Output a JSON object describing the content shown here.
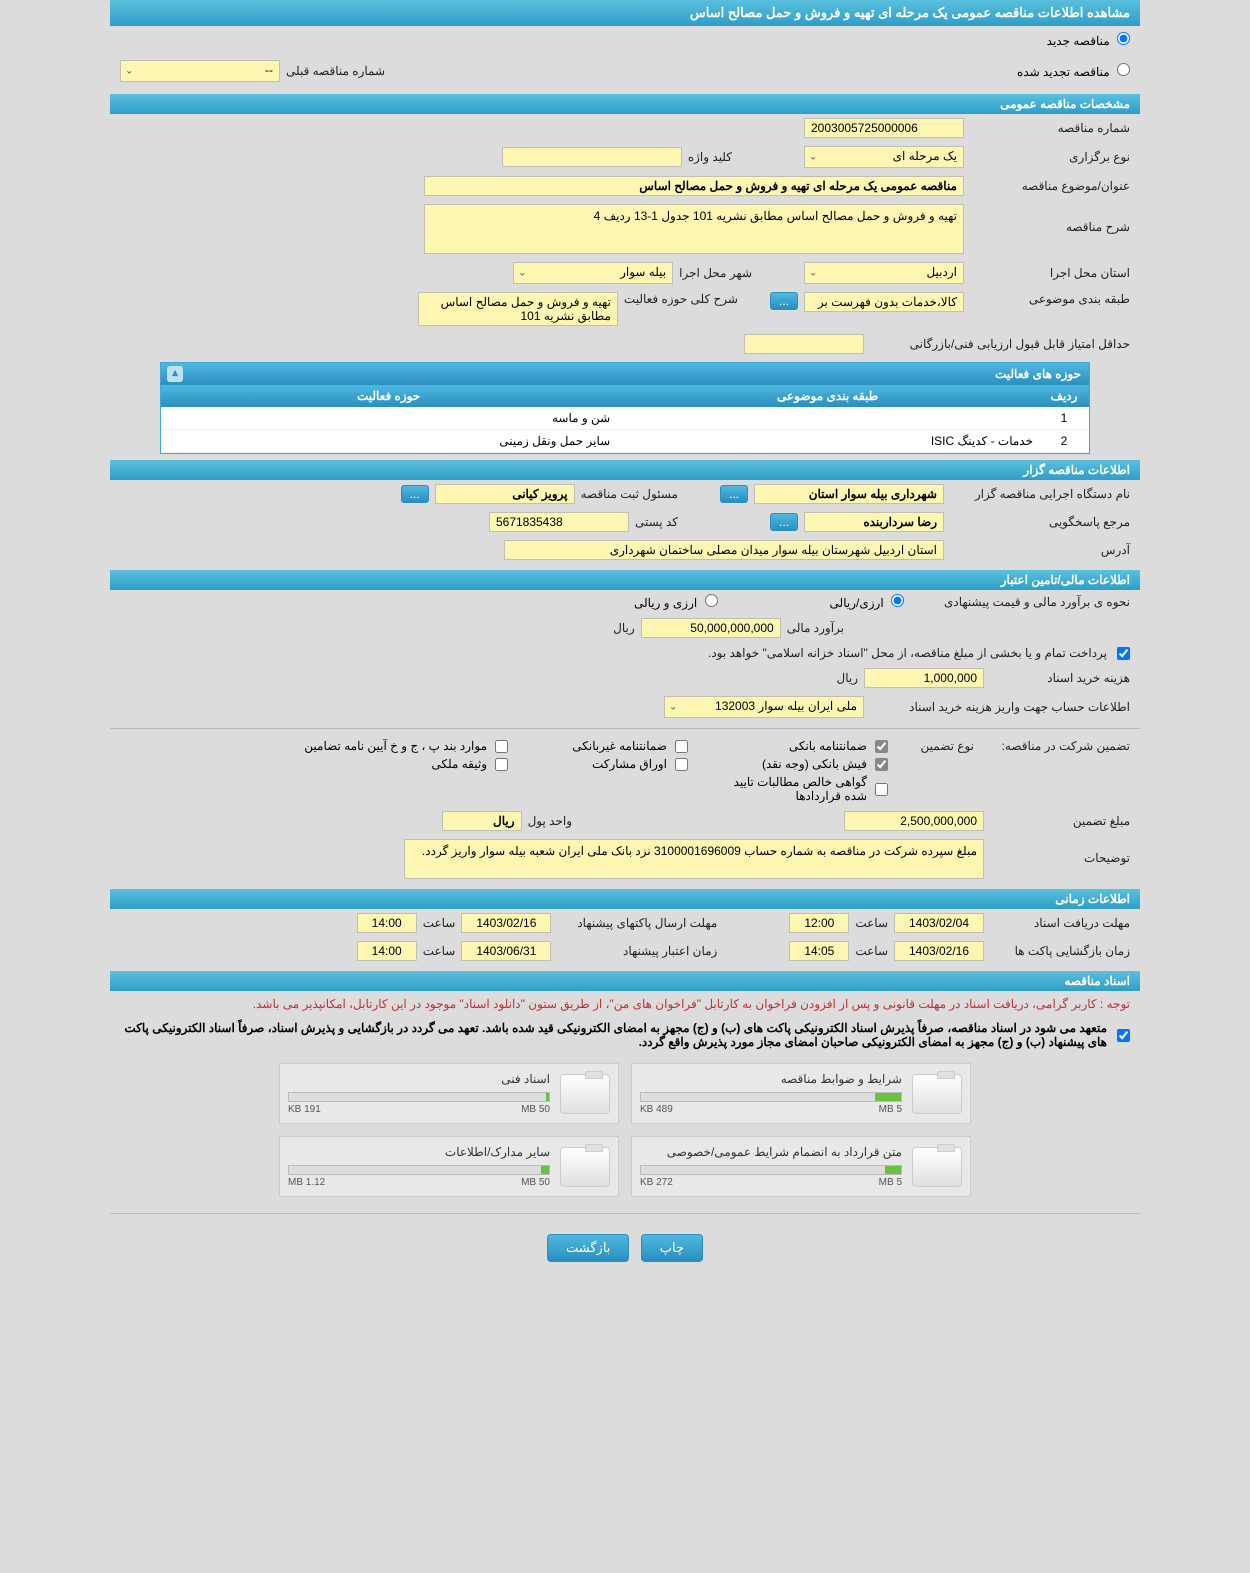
{
  "page_title": "مشاهده اطلاعات مناقصه عمومی یک مرحله ای تهیه و فروش و حمل مصالح اساس",
  "radios": {
    "new_tender": "مناقصه جدید",
    "renewed_tender": "مناقصه تجدید شده"
  },
  "prev_tender_label": "شماره مناقصه قبلی",
  "prev_tender_value": "--",
  "sections": {
    "general": "مشخصات مناقصه عمومی",
    "organizer": "اطلاعات مناقصه گزار",
    "financial": "اطلاعات مالی/تامین اعتبار",
    "timing": "اطلاعات زمانی",
    "docs": "اسناد مناقصه"
  },
  "general": {
    "tender_no_label": "شماره مناقصه",
    "tender_no": "2003005725000006",
    "hold_type_label": "نوع برگزاری",
    "hold_type": "یک مرحله ای",
    "keyword_label": "کلید واژه",
    "keyword": "",
    "subject_label": "عنوان/موضوع مناقصه",
    "subject": "مناقصه عمومی یک مرحله ای تهیه و فروش و حمل مصالح اساس",
    "desc_label": "شرح مناقصه",
    "desc": "تهیه و فروش و حمل مصالح اساس مطابق نشریه 101 جدول 1-13 ردیف 4",
    "province_label": "استان محل اجرا",
    "province": "اردبیل",
    "city_label": "شهر محل اجرا",
    "city": "بیله سوار",
    "category_label": "طبقه بندی موضوعی",
    "category": "کالا،خدمات بدون فهرست بر",
    "scope_label": "شرح کلی حوزه فعالیت",
    "scope": "تهیه و فروش و حمل مصالح اساس مطابق نشریه 101",
    "min_score_label": "حداقل امتیاز قابل قبول ارزیابی فنی/بازرگانی",
    "min_score": ""
  },
  "activity_panel": {
    "title": "حوزه های فعالیت",
    "columns": [
      "ردیف",
      "طبقه بندی موضوعی",
      "حوزه فعالیت"
    ],
    "rows": [
      {
        "num": "1",
        "cat": "",
        "scope": "شن و ماسه"
      },
      {
        "num": "2",
        "cat": "خدمات - کدینگ ISIC",
        "scope": "سایر حمل ونقل زمینی"
      }
    ]
  },
  "organizer": {
    "org_label": "نام دستگاه اجرایی مناقصه گزار",
    "org": "شهرداری بیله سوار استان",
    "reg_officer_label": "مسئول ثبت مناقصه",
    "reg_officer": "پرویز کیانی",
    "respondent_label": "مرجع پاسخگویی",
    "respondent": "رضا سرداربنده",
    "postal_label": "کد پستی",
    "postal": "5671835438",
    "address_label": "آدرس",
    "address": "استان اردبیل شهرستان بیله سوار میدان مصلی ساختمان شهرداری"
  },
  "financial": {
    "method_label": "نحوه ی برآورد مالی و قیمت پیشنهادی",
    "method_opt1": "ارزی/ریالی",
    "method_opt2": "ارزی و ریالی",
    "estimate_label": "برآورد مالی",
    "estimate": "50,000,000,000",
    "rial": "ریال",
    "treasury_note": "پرداخت تمام و یا بخشی از مبلغ مناقصه، از محل \"اسناد خزانه اسلامی\" خواهد بود.",
    "doc_cost_label": "هزینه خرید اسناد",
    "doc_cost": "1,000,000",
    "account_label": "اطلاعات حساب جهت واریز هزینه خرید اسناد",
    "account": "ملی ایران بیله سوار 132003",
    "guarantee_label": "تضمین شرکت در مناقصه:",
    "guarantee_type_label": "نوع تضمین",
    "guarantees": [
      {
        "label": "ضمانتنامه بانکی",
        "checked": true
      },
      {
        "label": "ضمانتنامه غیربانکی",
        "checked": false
      },
      {
        "label": "موارد بند پ ، ج و خ آیین نامه تضامین",
        "checked": false
      },
      {
        "label": "فیش بانکی (وجه نقد)",
        "checked": true
      },
      {
        "label": "اوراق مشارکت",
        "checked": false
      },
      {
        "label": "وثیقه ملکی",
        "checked": false
      },
      {
        "label": "گواهی خالص مطالبات تایید شده قراردادها",
        "checked": false
      }
    ],
    "guarantee_amount_label": "مبلغ تضمین",
    "guarantee_amount": "2,500,000,000",
    "unit_label": "واحد پول",
    "unit": "ریال",
    "notes_label": "توضیحات",
    "notes": "مبلغ سپرده شرکت در مناقصه به شماره حساب 3100001696009 نزد بانک ملی ایران شعبه بیله سوار واریز گردد."
  },
  "timing": {
    "receive_label": "مهلت دریافت اسناد",
    "receive_date": "1403/02/04",
    "receive_time_label": "ساعت",
    "receive_time": "12:00",
    "send_label": "مهلت ارسال پاکتهای پیشنهاد",
    "send_date": "1403/02/16",
    "send_time_label": "ساعت",
    "send_time": "14:00",
    "open_label": "زمان بازگشایی پاکت ها",
    "open_date": "1403/02/16",
    "open_time_label": "ساعت",
    "open_time": "14:05",
    "validity_label": "زمان اعتبار پیشنهاد",
    "validity_date": "1403/06/31",
    "validity_time_label": "ساعت",
    "validity_time": "14:00"
  },
  "docs": {
    "note": "توجه : کاربر گرامی، دریافت اسناد در مهلت قانونی و پس از افزودن فراخوان به کارتابل \"فراخوان های من\"، از طریق ستون \"دانلود اسناد\" موجود در این کارتابل، امکانپذیر می باشد.",
    "pledge": "متعهد می شود در اسناد مناقصه، صرفاً پذیرش اسناد الکترونیکی پاکت های (ب) و (ج) مجهز به امضای الکترونیکی قید شده باشد. تعهد می گردد در بازگشایی و پذیرش اسناد، صرفاً اسناد الکترونیکی پاکت های پیشنهاد (ب) و (ج) مجهز به امضای الکترونیکی صاحبان امضای مجاز مورد پذیرش واقع گردد.",
    "cards": [
      {
        "title": "شرایط و ضوابط مناقصه",
        "used": "489 KB",
        "limit": "5 MB",
        "pct": 10
      },
      {
        "title": "اسناد فنی",
        "used": "191 KB",
        "limit": "50 MB",
        "pct": 1
      },
      {
        "title": "متن قرارداد به انضمام شرایط عمومی/خصوصی",
        "used": "272 KB",
        "limit": "5 MB",
        "pct": 6
      },
      {
        "title": "سایر مدارک/اطلاعات",
        "used": "1.12 MB",
        "limit": "50 MB",
        "pct": 3
      }
    ]
  },
  "buttons": {
    "print": "چاپ",
    "back": "بازگشت"
  },
  "colors": {
    "header_grad_top": "#5bc0de",
    "header_grad_bot": "#2e9ec7",
    "field_bg": "#fdf6b2",
    "page_bg": "#dcdcdc",
    "note_red": "#c03030",
    "bar_fill": "#6fc040"
  }
}
